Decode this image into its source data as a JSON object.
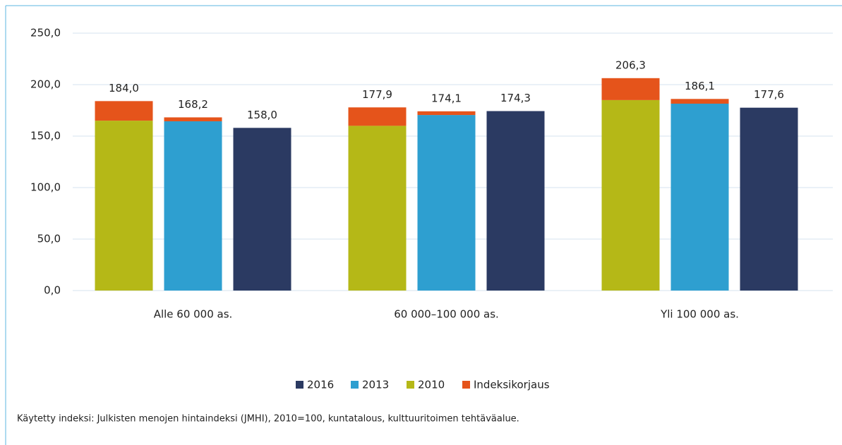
{
  "chart_data": {
    "type": "bar",
    "categories": [
      "Alle 60 000 as.",
      "60 000–100 000 as.",
      "Yli 100 000 as."
    ],
    "series": [
      {
        "name": "2010",
        "color": "#b5b817",
        "values": [
          165.0,
          160.0,
          185.0
        ],
        "correction": [
          19.0,
          17.9,
          21.3
        ],
        "value_labels": [
          "184,0",
          "177,9",
          "206,3"
        ]
      },
      {
        "name": "2013",
        "color": "#2e9fd0",
        "values": [
          164.4,
          170.5,
          181.5
        ],
        "correction": [
          3.8,
          3.6,
          4.6
        ],
        "value_labels": [
          "168,2",
          "174,1",
          "186,1"
        ]
      },
      {
        "name": "2016",
        "color": "#2b3a62",
        "values": [
          158.0,
          174.3,
          177.6
        ],
        "value_labels": [
          "158,0",
          "174,3",
          "177,6"
        ]
      }
    ],
    "correction": {
      "name": "Indeksikorjaus",
      "color": "#e5541b"
    },
    "ylim": [
      0,
      250
    ],
    "yticks": [
      {
        "value": 0,
        "label": "0,0"
      },
      {
        "value": 50,
        "label": "50,0"
      },
      {
        "value": 100,
        "label": "100,0"
      },
      {
        "value": 150,
        "label": "150,0"
      },
      {
        "value": 200,
        "label": "200,0"
      },
      {
        "value": 250,
        "label": "250,0"
      }
    ],
    "grid": true,
    "legend": "bottom",
    "footnote": "Käytetty indeksi: Julkisten menojen hintaindeksi (JMHI), 2010=100, kuntatalous, kulttuuritoimen tehtäväalue."
  }
}
